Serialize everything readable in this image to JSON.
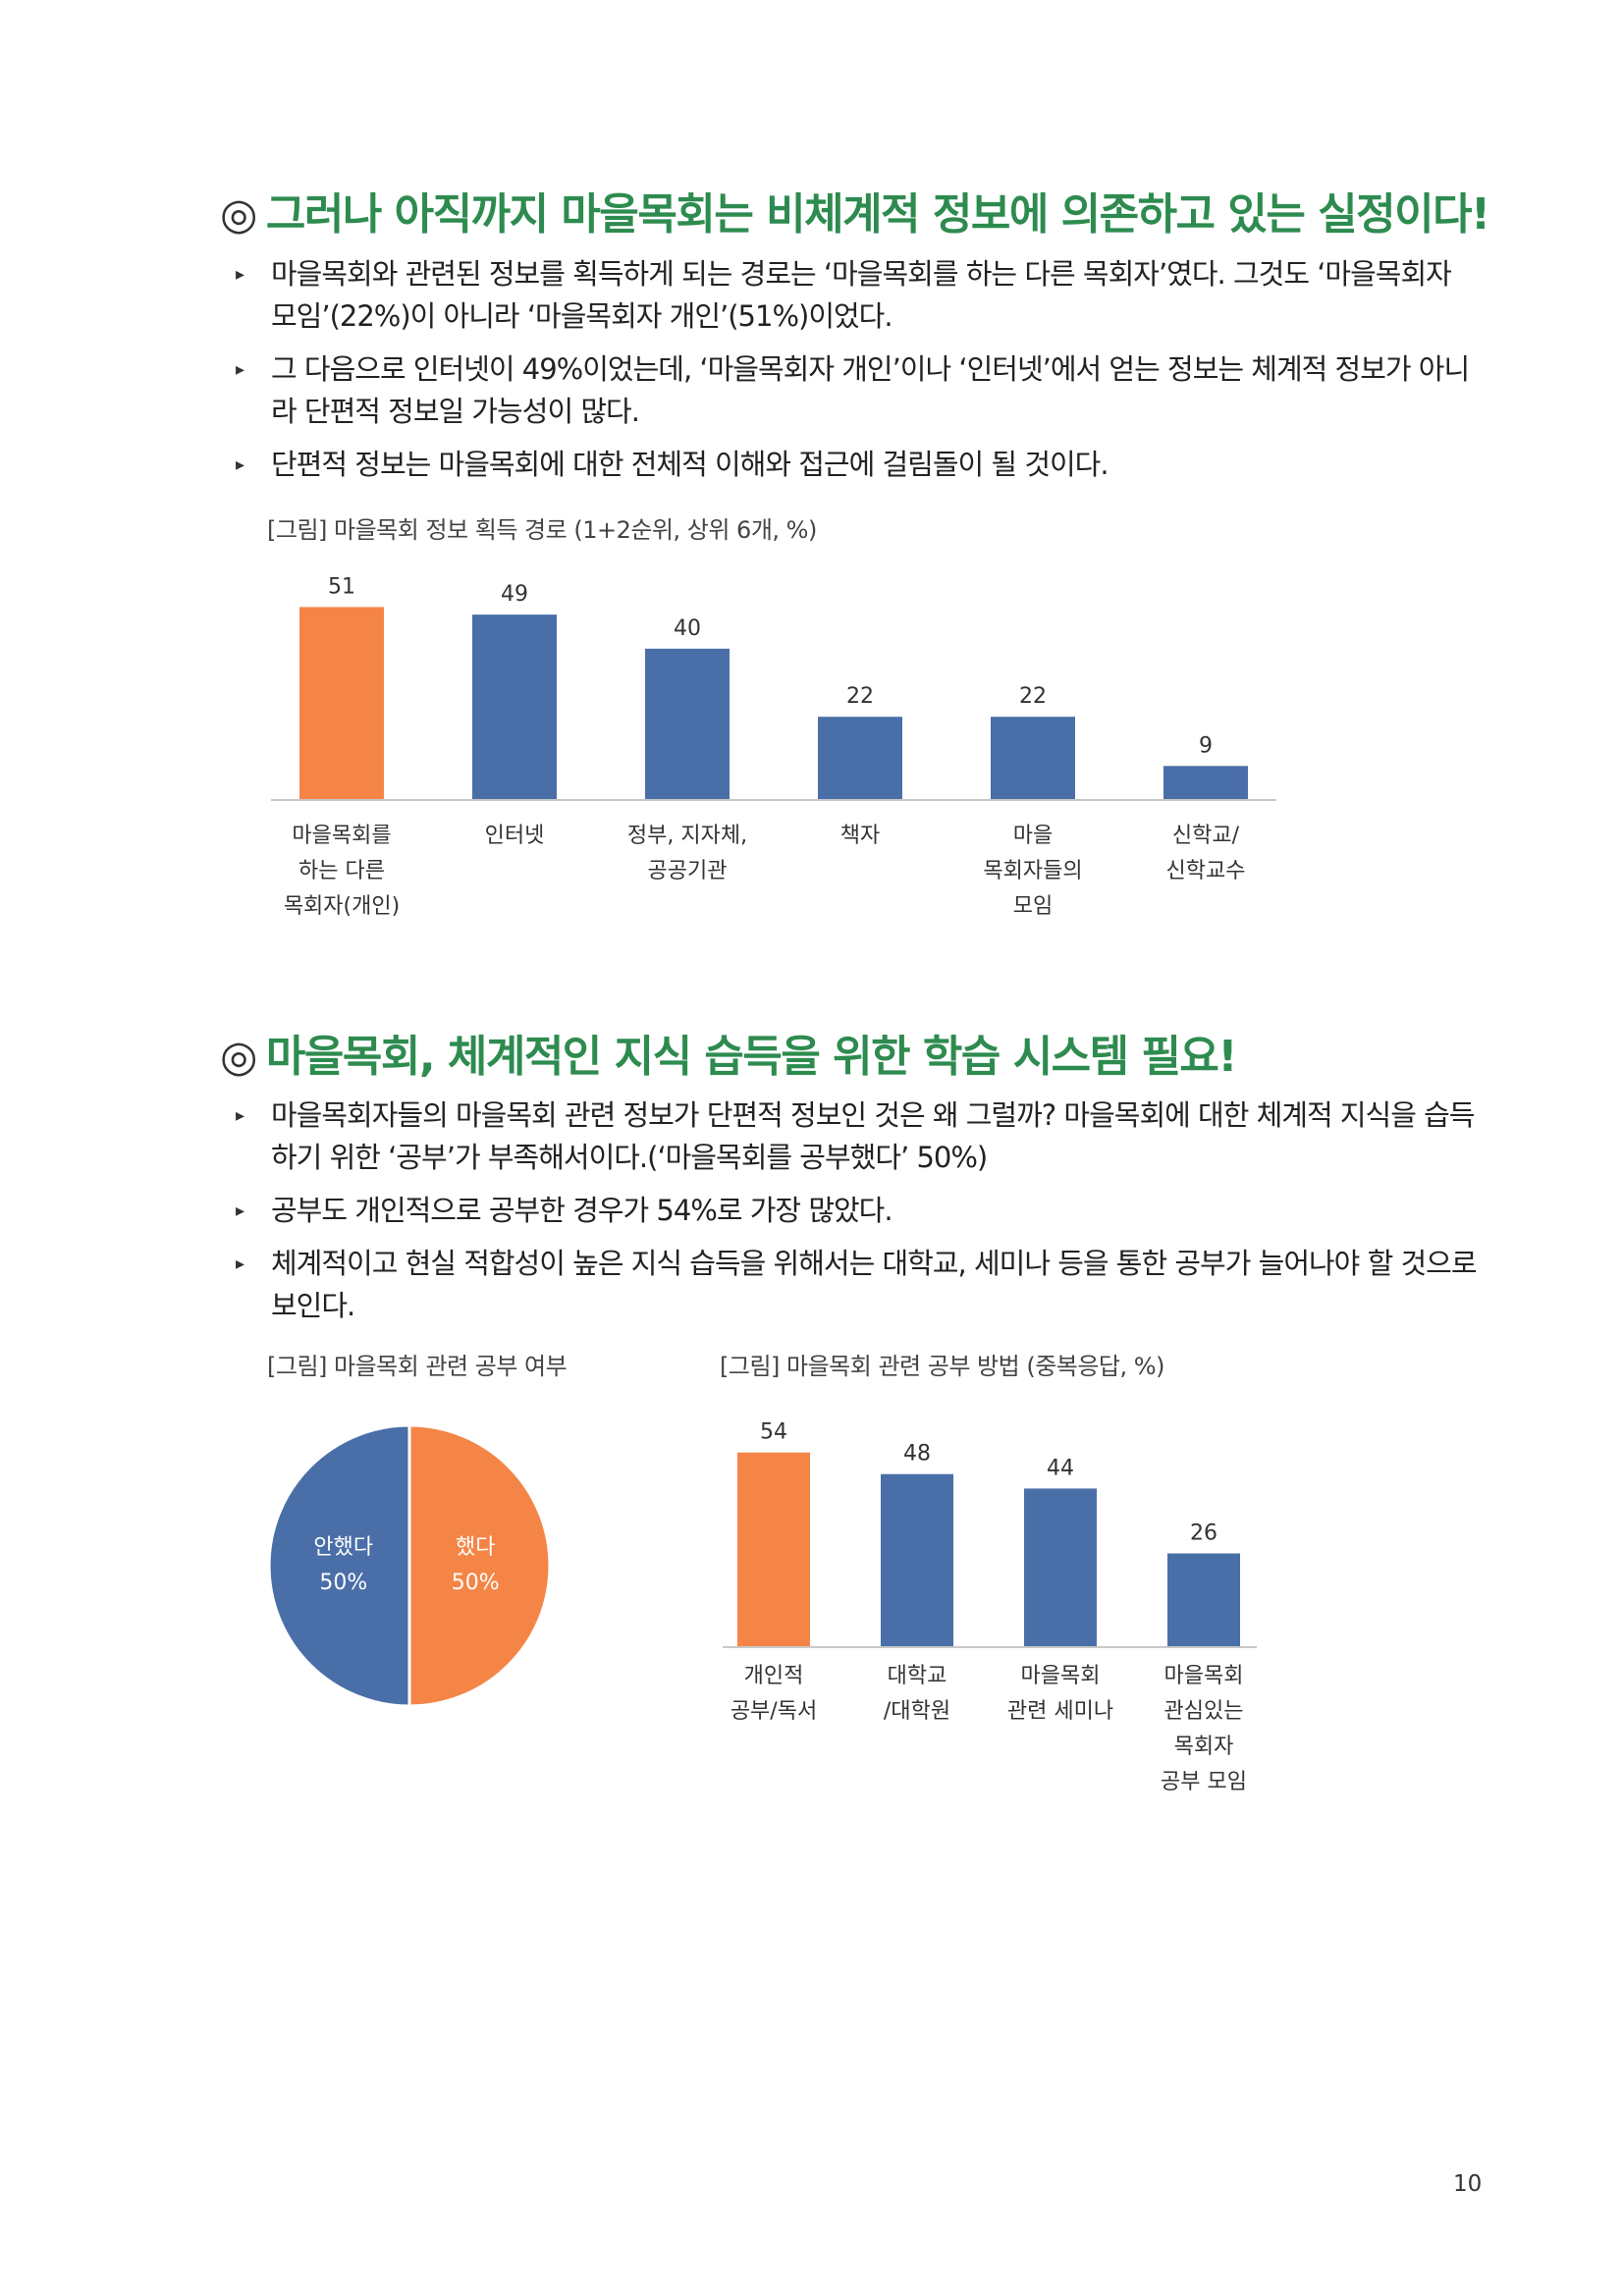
{
  "section1": {
    "mark": "◎",
    "title": "그러나 아직까지 마을목회는 비체계적 정보에 의존하고 있는 실정이다!",
    "bullets": [
      "마을목회와 관련된 정보를 획득하게 되는 경로는 ‘마을목회를 하는 다른 목회자’였다. 그것도 ‘마을목회자 모임’(22%)이 아니라 ‘마을목회자 개인’(51%)이었다.",
      "그 다음으로 인터넷이 49%이었는데, ‘마을목회자 개인’이나 ‘인터넷’에서 얻는 정보는 체계적 정보가 아니라 단편적 정보일 가능성이 많다.",
      "단편적 정보는 마을목회에 대한 전체적 이해와 접근에 걸림돌이 될 것이다."
    ],
    "figure_caption": "[그림] 마을목회 정보 획득 경로 (1+2순위, 상위 6개, %)"
  },
  "section2": {
    "mark": "◎",
    "title": "마을목회, 체계적인 지식 습득을 위한 학습 시스템 필요!",
    "bullets": [
      "마을목회자들의 마을목회 관련 정보가 단편적 정보인 것은 왜 그럴까? 마을목회에 대한 체계적 지식을 습득하기 위한 ‘공부’가 부족해서이다.(‘마을목회를 공부했다’ 50%)",
      "공부도 개인적으로 공부한 경우가 54%로 가장 많았다.",
      "체계적이고 현실 적합성이 높은 지식 습득을 위해서는 대학교, 세미나 등을 통한 공부가 늘어나야 할 것으로 보인다."
    ],
    "pie_caption": "[그림] 마을목회 관련 공부 여부",
    "bar_caption": "[그림] 마을목회 관련 공부 방법 (중복응답, %)"
  },
  "colors": {
    "heading": "#2e8b4f",
    "highlight": "#f58546",
    "bar": "#4a6fa8"
  },
  "chart_data": [
    {
      "type": "bar",
      "categories": [
        "마을목회를\n하는 다른\n목회자(개인)",
        "인터넷",
        "정부, 지자체,\n공공기관",
        "책자",
        "마을\n목회자들의\n모임",
        "신학교/\n신학교수"
      ],
      "values": [
        51,
        49,
        40,
        22,
        22,
        9
      ],
      "highlight_index": 0,
      "ylim": [
        0,
        55
      ]
    },
    {
      "type": "pie",
      "slices": [
        {
          "label": "안했다",
          "value": 50,
          "value_label": "50%",
          "color": "#4a6fa8"
        },
        {
          "label": "했다",
          "value": 50,
          "value_label": "50%",
          "color": "#f58546"
        }
      ]
    },
    {
      "type": "bar",
      "categories": [
        "개인적\n공부/독서",
        "대학교\n/대학원",
        "마을목회\n관련 세미나",
        "마을목회\n관심있는\n목회자\n공부 모임"
      ],
      "values": [
        54,
        48,
        44,
        26
      ],
      "highlight_index": 0,
      "ylim": [
        0,
        58
      ]
    }
  ],
  "page_number": "10"
}
